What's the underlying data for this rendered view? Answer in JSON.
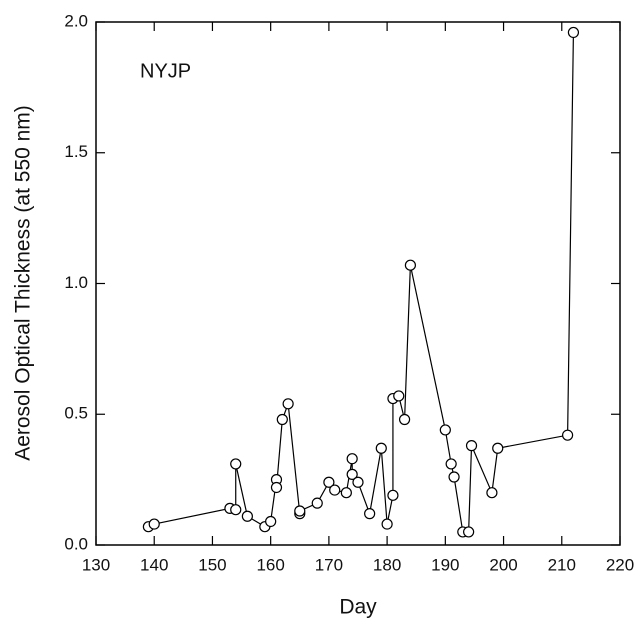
{
  "chart_data": {
    "type": "line",
    "annotation": "NYJP",
    "x_label": "Day",
    "y_label": "Aerosol Optical Thickness (at 550 nm)",
    "x": [
      139,
      140,
      153,
      154,
      154,
      156,
      159,
      160,
      161,
      161,
      162,
      163,
      165,
      165,
      168,
      170,
      171,
      173,
      174,
      174,
      175,
      177,
      179,
      180,
      181,
      181,
      182,
      183,
      184,
      190,
      191,
      191.5,
      193,
      194,
      194.5,
      198,
      199,
      211,
      212
    ],
    "series": [
      {
        "name": "NYJP",
        "color": "#000000",
        "values": [
          0.07,
          0.08,
          0.14,
          0.135,
          0.31,
          0.11,
          0.07,
          0.09,
          0.25,
          0.22,
          0.48,
          0.54,
          0.12,
          0.13,
          0.16,
          0.24,
          0.21,
          0.2,
          0.33,
          0.27,
          0.24,
          0.12,
          0.37,
          0.08,
          0.19,
          0.56,
          0.57,
          0.48,
          1.07,
          0.44,
          0.31,
          0.26,
          0.05,
          0.05,
          0.38,
          0.2,
          0.37,
          0.42,
          1.96
        ]
      }
    ],
    "xlim": [
      130,
      220
    ],
    "xticks": [
      130,
      140,
      150,
      160,
      170,
      180,
      190,
      200,
      210,
      220
    ],
    "ylim": [
      0,
      2
    ],
    "yticks": [
      {
        "value": 0,
        "label": "0.0"
      },
      {
        "value": 0.5,
        "label": "0.5"
      },
      {
        "value": 1,
        "label": "1.0"
      },
      {
        "value": 1.5,
        "label": "1.5"
      },
      {
        "value": 2,
        "label": "2.0"
      }
    ],
    "grid": false
  }
}
